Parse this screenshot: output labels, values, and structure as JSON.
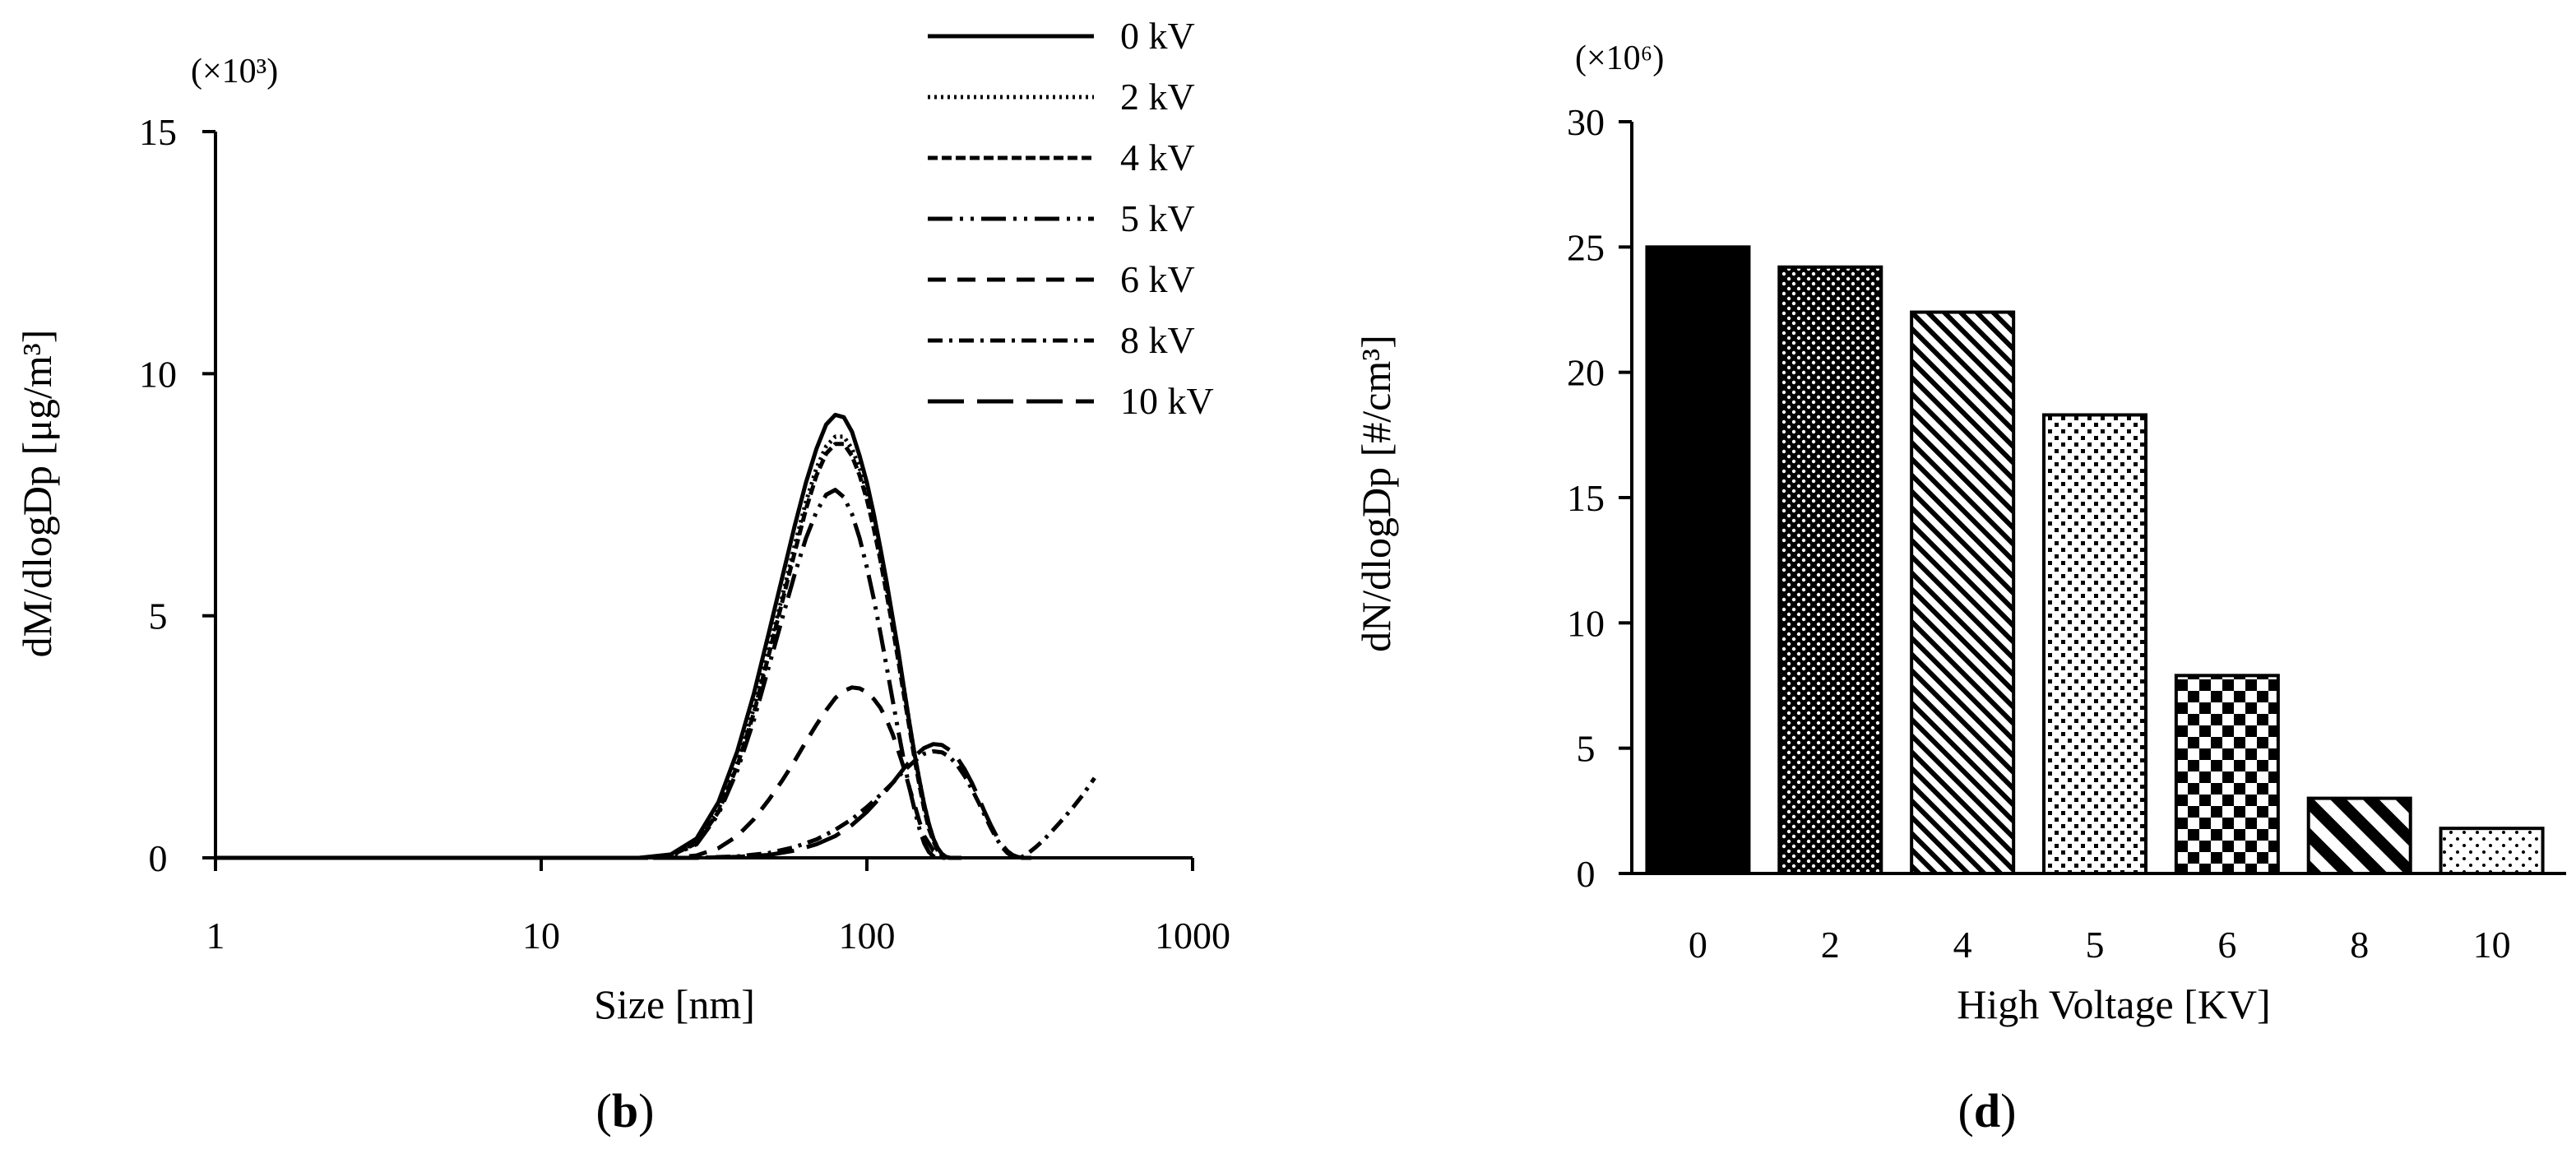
{
  "chart_data": [
    {
      "panel": "(b)",
      "panel_letter": "b",
      "type": "line",
      "xscale": "log",
      "xlabel": "Size [nm]",
      "ylabel": "dM/dlogDp [μg/m³]",
      "y_multiplier_label": "(×10³)",
      "xlim": [
        1,
        1000
      ],
      "ylim": [
        0,
        15
      ],
      "x_tick_values": [
        1,
        10,
        100,
        1000
      ],
      "x_tick_labels": [
        "1",
        "10",
        "100",
        "1000"
      ],
      "y_tick_values": [
        0,
        5,
        10,
        15
      ],
      "y_tick_labels": [
        "0",
        "5",
        "10",
        "15"
      ],
      "legend_position": "top-right",
      "series": [
        {
          "name": "0 kV",
          "dash": "solid",
          "x": [
            20,
            25,
            30,
            35,
            40,
            45,
            50,
            55,
            60,
            65,
            70,
            75,
            80,
            85,
            90,
            95,
            100,
            105,
            110,
            115,
            120,
            125,
            130,
            135,
            140,
            145,
            150,
            155,
            160,
            165,
            170,
            175,
            180,
            185,
            190,
            195
          ],
          "y": [
            0.0,
            0.07,
            0.4,
            1.15,
            2.2,
            3.4,
            4.65,
            5.8,
            6.85,
            7.75,
            8.45,
            8.95,
            9.15,
            9.1,
            8.8,
            8.3,
            7.75,
            7.1,
            6.4,
            5.7,
            4.95,
            4.25,
            3.5,
            2.8,
            2.15,
            1.6,
            1.1,
            0.7,
            0.4,
            0.2,
            0.08,
            0.02,
            0.0,
            0.0,
            0.0,
            0.0
          ]
        },
        {
          "name": "2 kV",
          "dash": "dotted",
          "x": [
            20,
            25,
            30,
            35,
            40,
            45,
            50,
            55,
            60,
            65,
            70,
            75,
            80,
            85,
            90,
            95,
            100,
            105,
            110,
            115,
            120,
            125,
            130,
            135,
            140,
            145,
            150,
            155,
            160,
            165,
            170,
            175,
            180,
            185,
            190,
            195
          ],
          "y": [
            0.0,
            0.05,
            0.33,
            1.0,
            1.95,
            3.1,
            4.3,
            5.4,
            6.45,
            7.35,
            8.05,
            8.5,
            8.7,
            8.7,
            8.45,
            8.05,
            7.55,
            6.95,
            6.3,
            5.6,
            4.9,
            4.2,
            3.5,
            2.8,
            2.15,
            1.6,
            1.1,
            0.7,
            0.4,
            0.2,
            0.08,
            0.02,
            0.0,
            0.0,
            0.0,
            0.0
          ]
        },
        {
          "name": "4 kV",
          "dash": "shortdash",
          "x": [
            20,
            25,
            30,
            35,
            40,
            45,
            50,
            55,
            60,
            65,
            70,
            75,
            80,
            85,
            90,
            95,
            100,
            105,
            110,
            115,
            120,
            125,
            130,
            135,
            140,
            145,
            150,
            155,
            160,
            165,
            170,
            175,
            180,
            185,
            190,
            195
          ],
          "y": [
            0.0,
            0.05,
            0.3,
            0.95,
            1.9,
            3.0,
            4.2,
            5.3,
            6.3,
            7.2,
            7.9,
            8.35,
            8.55,
            8.55,
            8.3,
            7.9,
            7.4,
            6.8,
            6.15,
            5.45,
            4.75,
            4.05,
            3.35,
            2.7,
            2.05,
            1.5,
            1.0,
            0.6,
            0.35,
            0.15,
            0.05,
            0.01,
            0.0,
            0.0,
            0.0,
            0.0
          ]
        },
        {
          "name": "5 kV",
          "dash": "dashdotdot",
          "x": [
            20,
            25,
            30,
            35,
            40,
            45,
            50,
            55,
            60,
            65,
            70,
            75,
            80,
            85,
            90,
            95,
            100,
            105,
            110,
            115,
            120,
            125,
            130,
            135,
            140,
            145,
            150,
            155,
            160,
            165,
            170,
            175,
            180,
            185,
            190,
            195
          ],
          "y": [
            0.0,
            0.04,
            0.28,
            0.9,
            1.8,
            2.85,
            3.95,
            4.95,
            5.85,
            6.6,
            7.15,
            7.5,
            7.6,
            7.45,
            7.1,
            6.6,
            6.0,
            5.35,
            4.65,
            3.95,
            3.25,
            2.6,
            2.0,
            1.45,
            1.0,
            0.6,
            0.3,
            0.12,
            0.03,
            0.0,
            0.0,
            0.0,
            0.0,
            0.0,
            0.0,
            0.0
          ]
        },
        {
          "name": "6 kV",
          "dash": "dashed",
          "x": [
            25,
            30,
            35,
            40,
            45,
            50,
            55,
            60,
            65,
            70,
            75,
            80,
            85,
            90,
            95,
            100,
            105,
            110,
            115,
            120,
            125,
            130,
            135,
            140,
            145,
            150,
            160,
            170,
            180,
            190,
            200
          ],
          "y": [
            0.0,
            0.05,
            0.2,
            0.45,
            0.8,
            1.2,
            1.6,
            2.0,
            2.4,
            2.75,
            3.05,
            3.3,
            3.45,
            3.52,
            3.5,
            3.42,
            3.28,
            3.1,
            2.85,
            2.55,
            2.2,
            1.85,
            1.45,
            1.1,
            0.75,
            0.45,
            0.15,
            0.03,
            0.0,
            0.0,
            0.0
          ]
        },
        {
          "name": "8 kV",
          "dash": "dashdot",
          "x": [
            30,
            40,
            50,
            60,
            70,
            80,
            90,
            100,
            110,
            120,
            130,
            140,
            150,
            160,
            170,
            180,
            190,
            200,
            210,
            220,
            230,
            240,
            250,
            260,
            270,
            280,
            290,
            300,
            310,
            320,
            330,
            340,
            350,
            370,
            400,
            430,
            460,
            500
          ],
          "y": [
            0.0,
            0.03,
            0.1,
            0.22,
            0.38,
            0.58,
            0.8,
            1.05,
            1.3,
            1.55,
            1.8,
            2.0,
            2.15,
            2.2,
            2.18,
            2.08,
            1.9,
            1.68,
            1.42,
            1.15,
            0.88,
            0.62,
            0.4,
            0.22,
            0.1,
            0.03,
            0.0,
            0.02,
            0.08,
            0.15,
            0.22,
            0.3,
            0.38,
            0.55,
            0.8,
            1.05,
            1.3,
            1.65
          ]
        },
        {
          "name": "10 kV",
          "dash": "longdash",
          "x": [
            30,
            40,
            50,
            60,
            70,
            80,
            90,
            100,
            110,
            120,
            130,
            140,
            150,
            160,
            170,
            180,
            190,
            200,
            210,
            220,
            230,
            240,
            250,
            260,
            270,
            280,
            290,
            300,
            310,
            320
          ],
          "y": [
            0.0,
            0.02,
            0.06,
            0.15,
            0.28,
            0.45,
            0.68,
            0.95,
            1.25,
            1.55,
            1.85,
            2.1,
            2.27,
            2.35,
            2.33,
            2.22,
            2.05,
            1.82,
            1.55,
            1.25,
            0.95,
            0.68,
            0.45,
            0.27,
            0.14,
            0.06,
            0.02,
            0.0,
            0.0,
            0.0
          ]
        }
      ]
    },
    {
      "panel": "(d)",
      "panel_letter": "d",
      "type": "bar",
      "xlabel": "High Voltage [KV]",
      "ylabel": "dN/dlogDp [#/cm³]",
      "y_multiplier_label": "(×10⁶)",
      "ylim": [
        0,
        30
      ],
      "y_tick_values": [
        0,
        5,
        10,
        15,
        20,
        25,
        30
      ],
      "y_tick_labels": [
        "0",
        "5",
        "10",
        "15",
        "20",
        "25",
        "30"
      ],
      "categories": [
        "0",
        "2",
        "4",
        "5",
        "6",
        "8",
        "10"
      ],
      "values": [
        25.0,
        24.2,
        22.4,
        18.3,
        7.9,
        3.0,
        1.8
      ],
      "bar_patterns": [
        "solid",
        "dots-dense",
        "diag-stripes",
        "dots-grid",
        "checker",
        "diag-wide",
        "dots-sparse"
      ]
    }
  ]
}
